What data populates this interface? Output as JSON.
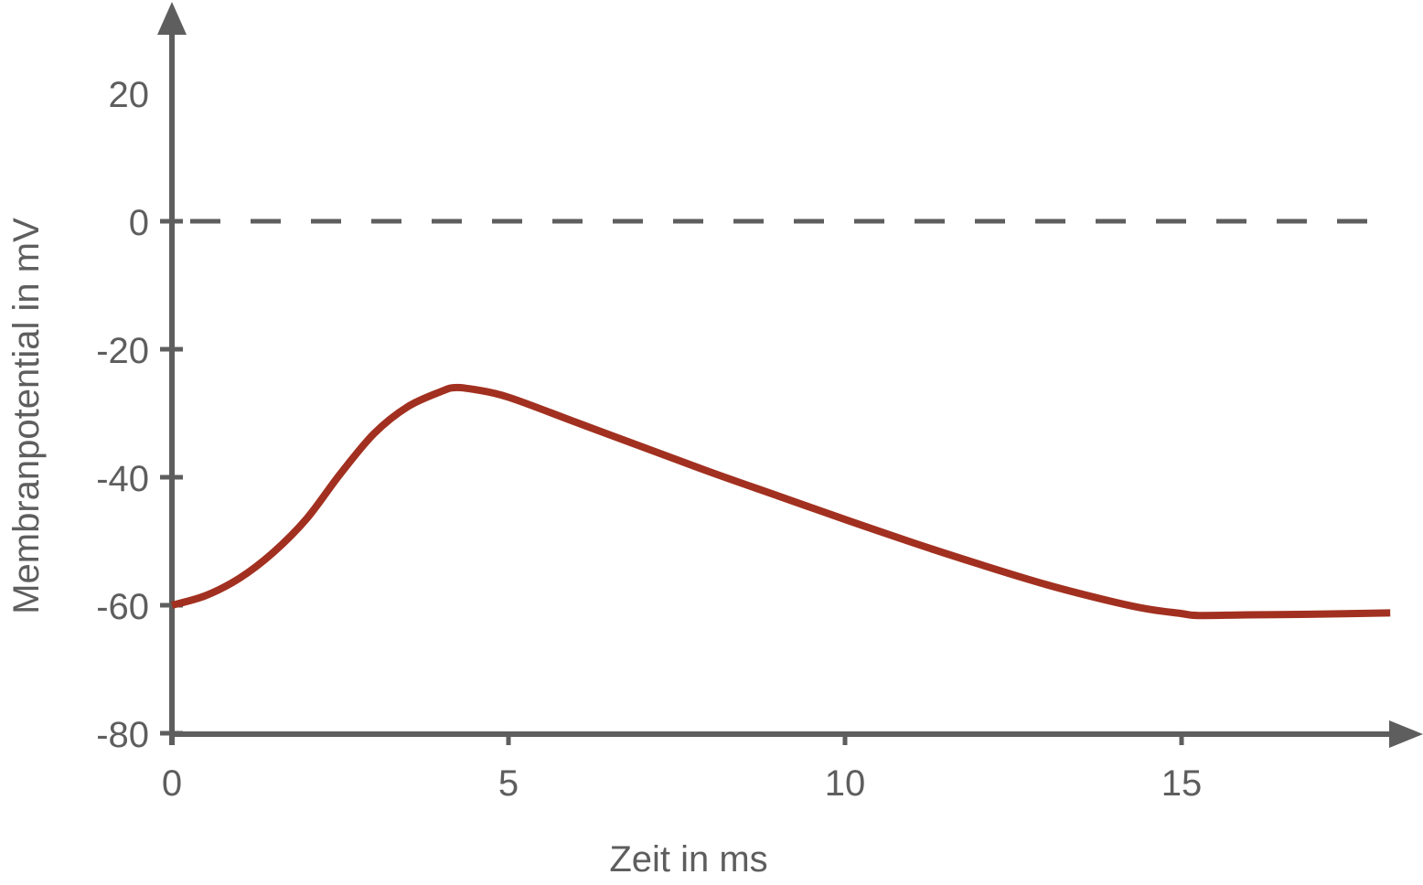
{
  "chart_data": {
    "type": "line",
    "title": "",
    "xlabel": "Zeit in ms",
    "ylabel": "Membranpotential in mV",
    "xlim": [
      0,
      18.1
    ],
    "ylim": [
      -80,
      30
    ],
    "grid": false,
    "legend": null,
    "x_ticks": [
      0,
      5,
      10,
      15
    ],
    "x_tick_labels": [
      "0",
      "5",
      "10",
      "15"
    ],
    "y_ticks": [
      20,
      0,
      -20,
      -40,
      -60,
      -80
    ],
    "y_tick_labels": [
      "20",
      "0",
      "-20",
      "-40",
      "-60",
      "-80"
    ],
    "reference_line": {
      "y": 0,
      "style": "dashed",
      "color": "#5e5e5e"
    },
    "series": [
      {
        "name": "Membranpotential",
        "color": "#a23020",
        "x": [
          0,
          0.5,
          1.0,
          1.5,
          2.0,
          2.5,
          3.0,
          3.5,
          4.0,
          4.2,
          4.5,
          5.0,
          6.0,
          7.0,
          8.0,
          9.0,
          10.0,
          11.0,
          12.0,
          13.0,
          14.0,
          14.5,
          15.0,
          15.25,
          16.0,
          17.0,
          18.1
        ],
        "values": [
          -60,
          -58.5,
          -55.8,
          -51.8,
          -46.5,
          -39.5,
          -33.2,
          -29.0,
          -26.6,
          -26.0,
          -26.3,
          -27.5,
          -31.4,
          -35.3,
          -39.2,
          -42.9,
          -46.6,
          -50.2,
          -53.6,
          -56.8,
          -59.5,
          -60.6,
          -61.3,
          -61.6,
          -61.5,
          -61.4,
          -61.2
        ]
      }
    ]
  },
  "axes": {
    "x_title": "Zeit in ms",
    "y_title": "Membranpotential in mV",
    "x_tick_labels": [
      "0",
      "5",
      "10",
      "15"
    ],
    "y_tick_labels": [
      "20",
      "0",
      "-20",
      "-40",
      "-60",
      "-80"
    ]
  },
  "colors": {
    "axis": "#5e5e5e",
    "curve": "#a23020"
  }
}
